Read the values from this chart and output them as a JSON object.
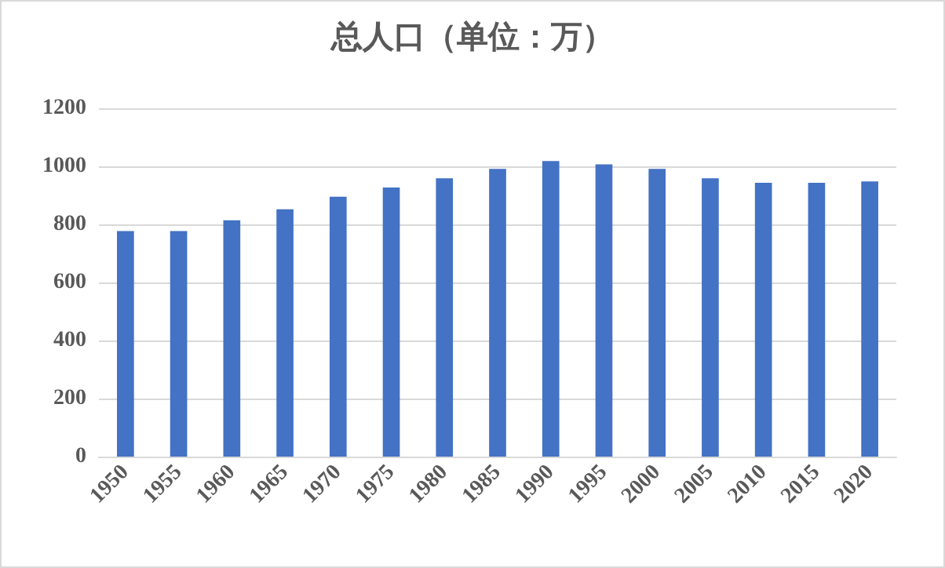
{
  "chart_data": {
    "type": "bar",
    "title": "总人口（单位：万）",
    "categories": [
      "1950",
      "1955",
      "1960",
      "1965",
      "1970",
      "1975",
      "1980",
      "1985",
      "1990",
      "1995",
      "2000",
      "2005",
      "2010",
      "2015",
      "2020"
    ],
    "values": [
      777,
      777,
      814,
      852,
      895,
      927,
      959,
      991,
      1018,
      1007,
      991,
      959,
      943,
      943,
      948
    ],
    "color": "#4472c4",
    "ylim": [
      0,
      1200
    ],
    "yticks": [
      0,
      200,
      400,
      600,
      800,
      1000,
      1200
    ],
    "grid": "y"
  }
}
